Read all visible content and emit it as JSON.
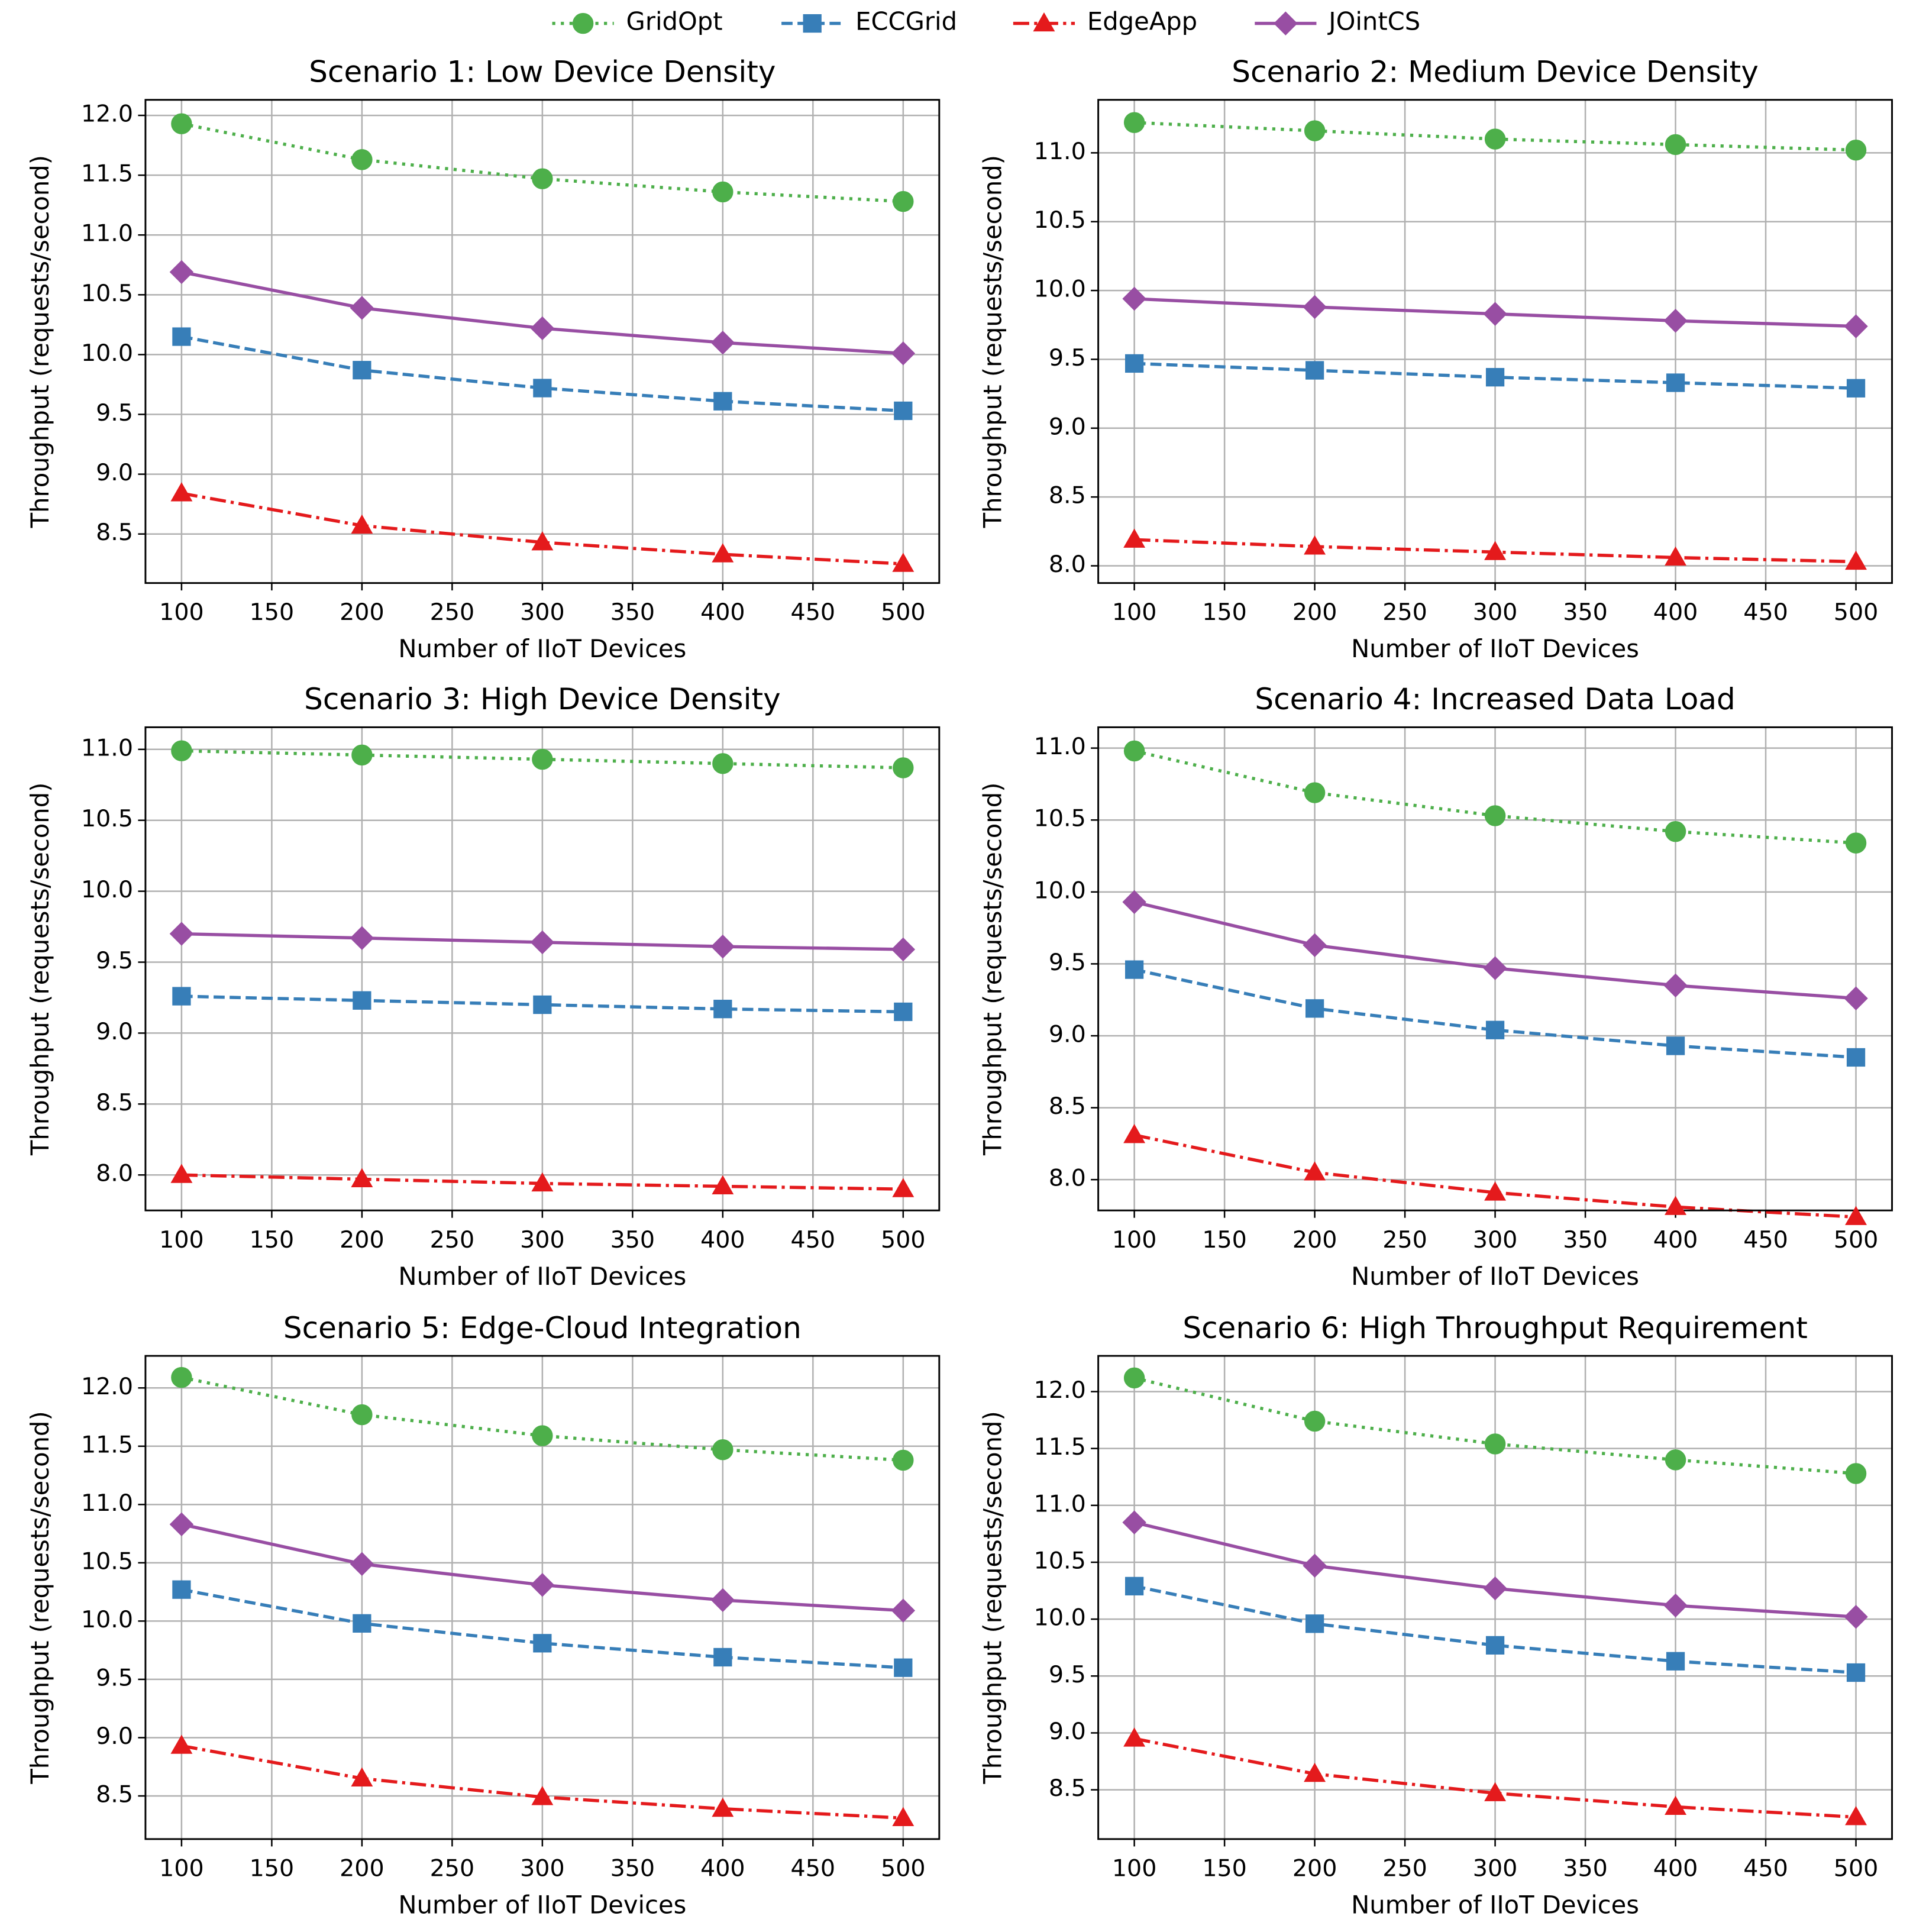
{
  "chart_data": [
    {
      "type": "line",
      "title": "Scenario 1: Low Device Density",
      "x_label": "Number of IIoT Devices",
      "y_label": "Throughput (requests/second)",
      "grid": true,
      "legend": "upper center",
      "x": [
        100,
        200,
        300,
        400,
        500
      ],
      "xlim": [
        80,
        520
      ],
      "xticks": [
        100,
        150,
        200,
        250,
        300,
        350,
        400,
        450,
        500
      ],
      "ylim": [
        8.09,
        12.13
      ],
      "yticks": [
        8.5,
        {
          "value": 9,
          "label": "9.0"
        },
        9.5,
        {
          "value": 10,
          "label": "10.0"
        },
        10.5,
        {
          "value": 11,
          "label": "11.0"
        },
        11.5,
        {
          "value": 12,
          "label": "12.0"
        }
      ],
      "series": [
        {
          "name": "GridOpt",
          "color": "#4daf4a",
          "linestyle": "dotted",
          "marker": "circle",
          "values": [
            11.93,
            11.63,
            11.47,
            11.36,
            11.28
          ]
        },
        {
          "name": "ECCGrid",
          "color": "#377eb8",
          "linestyle": "dashed",
          "marker": "square",
          "values": [
            10.15,
            9.87,
            9.72,
            9.61,
            9.53
          ]
        },
        {
          "name": "EdgeApp",
          "color": "#e41a1c",
          "linestyle": "dashdot",
          "marker": "triangle",
          "values": [
            8.84,
            8.57,
            8.43,
            8.33,
            8.25
          ]
        },
        {
          "name": "JOintCS",
          "color": "#984ea3",
          "linestyle": "solid",
          "marker": "diamond",
          "values": [
            10.69,
            10.39,
            10.22,
            10.1,
            10.01
          ]
        }
      ]
    },
    {
      "type": "line",
      "title": "Scenario 2: Medium Device Density",
      "x_label": "Number of IIoT Devices",
      "y_label": "Throughput (requests/second)",
      "grid": true,
      "x": [
        100,
        200,
        300,
        400,
        500
      ],
      "xlim": [
        80,
        520
      ],
      "xticks": [
        100,
        150,
        200,
        250,
        300,
        350,
        400,
        450,
        500
      ],
      "ylim": [
        7.875,
        11.385
      ],
      "yticks": [
        {
          "value": 8,
          "label": "8.0"
        },
        8.5,
        {
          "value": 9,
          "label": "9.0"
        },
        9.5,
        {
          "value": 10,
          "label": "10.0"
        },
        10.5,
        {
          "value": 11,
          "label": "11.0"
        }
      ],
      "series": [
        {
          "name": "GridOpt",
          "color": "#4daf4a",
          "linestyle": "dotted",
          "marker": "circle",
          "values": [
            11.22,
            11.16,
            11.1,
            11.06,
            11.02
          ]
        },
        {
          "name": "ECCGrid",
          "color": "#377eb8",
          "linestyle": "dashed",
          "marker": "square",
          "values": [
            9.47,
            9.42,
            9.37,
            9.33,
            9.29
          ]
        },
        {
          "name": "EdgeApp",
          "color": "#e41a1c",
          "linestyle": "dashdot",
          "marker": "triangle",
          "values": [
            8.19,
            8.14,
            8.1,
            8.06,
            8.03
          ]
        },
        {
          "name": "JOintCS",
          "color": "#984ea3",
          "linestyle": "solid",
          "marker": "diamond",
          "values": [
            9.94,
            9.88,
            9.83,
            9.78,
            9.74
          ]
        }
      ]
    },
    {
      "type": "line",
      "title": "Scenario 3: High Device Density",
      "x_label": "Number of IIoT Devices",
      "y_label": "Throughput (requests/second)",
      "grid": true,
      "x": [
        100,
        200,
        300,
        400,
        500
      ],
      "xlim": [
        80,
        520
      ],
      "xticks": [
        100,
        150,
        200,
        250,
        300,
        350,
        400,
        450,
        500
      ],
      "ylim": [
        7.75,
        11.156
      ],
      "yticks": [
        {
          "value": 8,
          "label": "8.0"
        },
        8.5,
        {
          "value": 9,
          "label": "9.0"
        },
        9.5,
        {
          "value": 10,
          "label": "10.0"
        },
        10.5,
        {
          "value": 11,
          "label": "11.0"
        }
      ],
      "series": [
        {
          "name": "GridOpt",
          "color": "#4daf4a",
          "linestyle": "dotted",
          "marker": "circle",
          "values": [
            10.99,
            10.96,
            10.93,
            10.9,
            10.87
          ]
        },
        {
          "name": "ECCGrid",
          "color": "#377eb8",
          "linestyle": "dashed",
          "marker": "square",
          "values": [
            9.26,
            9.23,
            9.2,
            9.17,
            9.15
          ]
        },
        {
          "name": "EdgeApp",
          "color": "#e41a1c",
          "linestyle": "dashdot",
          "marker": "triangle",
          "values": [
            8.0,
            7.97,
            7.94,
            7.92,
            7.9
          ]
        },
        {
          "name": "JOintCS",
          "color": "#984ea3",
          "linestyle": "solid",
          "marker": "diamond",
          "values": [
            9.7,
            9.67,
            9.64,
            9.61,
            9.59
          ]
        }
      ]
    },
    {
      "type": "line",
      "title": "Scenario 4: Increased Data Load",
      "x_label": "Number of IIoT Devices",
      "y_label": "Throughput (requests/second)",
      "grid": true,
      "x": [
        100,
        200,
        300,
        400,
        500
      ],
      "xlim": [
        80,
        520
      ],
      "xticks": [
        100,
        150,
        200,
        250,
        300,
        350,
        400,
        450,
        500
      ],
      "ylim": [
        7.786,
        11.145
      ],
      "yticks": [
        {
          "value": 8,
          "label": "8.0"
        },
        8.5,
        {
          "value": 9,
          "label": "9.0"
        },
        9.5,
        {
          "value": 10,
          "label": "10.0"
        },
        10.5,
        {
          "value": 11,
          "label": "11.0"
        }
      ],
      "series": [
        {
          "name": "GridOpt",
          "color": "#4daf4a",
          "linestyle": "dotted",
          "marker": "circle",
          "values": [
            10.98,
            10.69,
            10.53,
            10.42,
            10.34
          ]
        },
        {
          "name": "ECCGrid",
          "color": "#377eb8",
          "linestyle": "dashed",
          "marker": "square",
          "values": [
            9.46,
            9.19,
            9.04,
            8.93,
            8.85
          ]
        },
        {
          "name": "EdgeApp",
          "color": "#e41a1c",
          "linestyle": "dashdot",
          "marker": "triangle",
          "values": [
            8.31,
            8.05,
            7.91,
            7.81,
            7.74
          ]
        },
        {
          "name": "JOintCS",
          "color": "#984ea3",
          "linestyle": "solid",
          "marker": "diamond",
          "values": [
            9.93,
            9.63,
            9.47,
            9.35,
            9.26
          ]
        }
      ]
    },
    {
      "type": "line",
      "title": "Scenario 5: Edge-Cloud Integration",
      "x_label": "Number of IIoT Devices",
      "y_label": "Throughput (requests/second)",
      "grid": true,
      "x": [
        100,
        200,
        300,
        400,
        500
      ],
      "xlim": [
        80,
        520
      ],
      "xticks": [
        100,
        150,
        200,
        250,
        300,
        350,
        400,
        450,
        500
      ],
      "ylim": [
        8.13,
        12.275
      ],
      "yticks": [
        8.5,
        {
          "value": 9,
          "label": "9.0"
        },
        9.5,
        {
          "value": 10,
          "label": "10.0"
        },
        10.5,
        {
          "value": 11,
          "label": "11.0"
        },
        11.5,
        {
          "value": 12,
          "label": "12.0"
        }
      ],
      "series": [
        {
          "name": "GridOpt",
          "color": "#4daf4a",
          "linestyle": "dotted",
          "marker": "circle",
          "values": [
            12.09,
            11.77,
            11.59,
            11.47,
            11.38
          ]
        },
        {
          "name": "ECCGrid",
          "color": "#377eb8",
          "linestyle": "dashed",
          "marker": "square",
          "values": [
            10.27,
            9.98,
            9.81,
            9.69,
            9.6
          ]
        },
        {
          "name": "EdgeApp",
          "color": "#e41a1c",
          "linestyle": "dashdot",
          "marker": "triangle",
          "values": [
            8.93,
            8.65,
            8.49,
            8.39,
            8.31
          ]
        },
        {
          "name": "JOintCS",
          "color": "#984ea3",
          "linestyle": "solid",
          "marker": "diamond",
          "values": [
            10.83,
            10.49,
            10.31,
            10.18,
            10.09
          ]
        }
      ]
    },
    {
      "type": "line",
      "title": "Scenario 6: High Throughput Requirement",
      "x_label": "Number of IIoT Devices",
      "y_label": "Throughput (requests/second)",
      "grid": true,
      "x": [
        100,
        200,
        300,
        400,
        500
      ],
      "xlim": [
        80,
        520
      ],
      "xticks": [
        100,
        150,
        200,
        250,
        300,
        350,
        400,
        450,
        500
      ],
      "ylim": [
        8.067,
        12.314
      ],
      "yticks": [
        8.5,
        {
          "value": 9,
          "label": "9.0"
        },
        9.5,
        {
          "value": 10,
          "label": "10.0"
        },
        10.5,
        {
          "value": 11,
          "label": "11.0"
        },
        11.5,
        {
          "value": 12,
          "label": "12.0"
        }
      ],
      "series": [
        {
          "name": "GridOpt",
          "color": "#4daf4a",
          "linestyle": "dotted",
          "marker": "circle",
          "values": [
            12.12,
            11.74,
            11.54,
            11.4,
            11.28
          ]
        },
        {
          "name": "ECCGrid",
          "color": "#377eb8",
          "linestyle": "dashed",
          "marker": "square",
          "values": [
            10.29,
            9.96,
            9.77,
            9.63,
            9.53
          ]
        },
        {
          "name": "EdgeApp",
          "color": "#e41a1c",
          "linestyle": "dashdot",
          "marker": "triangle",
          "values": [
            8.95,
            8.64,
            8.47,
            8.35,
            8.26
          ]
        },
        {
          "name": "JOintCS",
          "color": "#984ea3",
          "linestyle": "solid",
          "marker": "diamond",
          "values": [
            10.85,
            10.47,
            10.27,
            10.12,
            10.02
          ]
        }
      ]
    }
  ]
}
